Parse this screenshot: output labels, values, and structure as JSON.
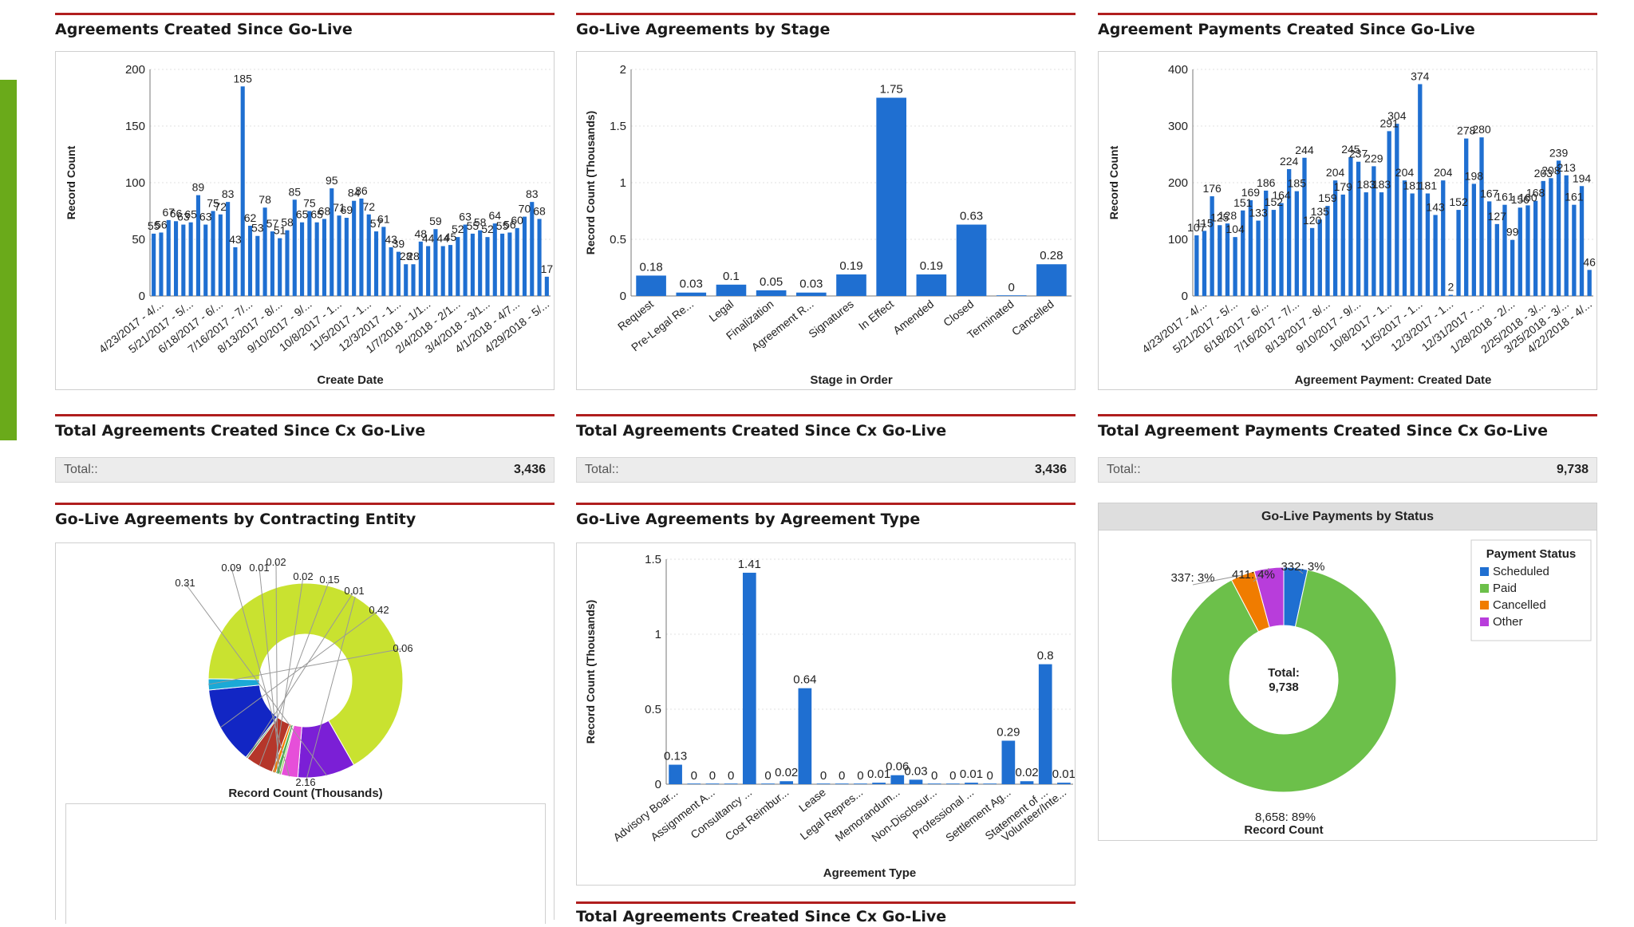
{
  "colors": {
    "bar": "#1f6fd1",
    "accent": "#b01e1e",
    "grid": "#d9d9d9",
    "green_side": "#6aaa1a"
  },
  "panels": {
    "agreements_created": {
      "title": "Agreements Created Since Go-Live",
      "chart_data": {
        "type": "bar",
        "ylabel": "Record Count",
        "xlabel": "Create Date",
        "ylim": [
          0,
          200
        ],
        "yticks": [
          0,
          50,
          100,
          150,
          200
        ],
        "values": [
          55,
          56,
          67,
          66,
          63,
          65,
          89,
          63,
          75,
          72,
          83,
          43,
          185,
          62,
          53,
          78,
          57,
          51,
          58,
          85,
          65,
          75,
          65,
          68,
          95,
          71,
          69,
          84,
          86,
          72,
          57,
          61,
          43,
          39,
          28,
          28,
          48,
          44,
          59,
          44,
          45,
          52,
          63,
          55,
          58,
          52,
          64,
          55,
          56,
          60,
          70,
          83,
          68,
          17
        ],
        "data_labels": [
          [
            0,
            "55"
          ],
          [
            1,
            "56"
          ],
          [
            2,
            "67"
          ],
          [
            3,
            "66"
          ],
          [
            4,
            "63"
          ],
          [
            5,
            "65"
          ],
          [
            6,
            "89"
          ],
          [
            7,
            "63"
          ],
          [
            8,
            "75"
          ],
          [
            9,
            "72"
          ],
          [
            10,
            "83"
          ],
          [
            11,
            "43"
          ],
          [
            12,
            "185"
          ],
          [
            13,
            "62"
          ],
          [
            14,
            "53"
          ],
          [
            15,
            "78"
          ],
          [
            16,
            "57"
          ],
          [
            17,
            "51"
          ],
          [
            18,
            "58"
          ],
          [
            19,
            "85"
          ],
          [
            20,
            "65"
          ],
          [
            21,
            "75"
          ],
          [
            22,
            "65"
          ],
          [
            23,
            "68"
          ],
          [
            24,
            "95"
          ],
          [
            25,
            "71"
          ],
          [
            26,
            "69"
          ],
          [
            27,
            "84"
          ],
          [
            28,
            "86"
          ],
          [
            29,
            "72"
          ],
          [
            30,
            "57"
          ],
          [
            31,
            "61"
          ],
          [
            32,
            "43"
          ],
          [
            33,
            "39"
          ],
          [
            34,
            "28"
          ],
          [
            35,
            "28"
          ],
          [
            36,
            "48"
          ],
          [
            37,
            "44"
          ],
          [
            38,
            "59"
          ],
          [
            39,
            "44"
          ],
          [
            40,
            "45"
          ],
          [
            41,
            "52"
          ],
          [
            42,
            "63"
          ],
          [
            43,
            "55"
          ],
          [
            44,
            "58"
          ],
          [
            45,
            "52"
          ],
          [
            46,
            "64"
          ],
          [
            47,
            "55"
          ],
          [
            48,
            "56"
          ],
          [
            49,
            "60"
          ],
          [
            50,
            "70"
          ],
          [
            51,
            "83"
          ],
          [
            52,
            "68"
          ],
          [
            53,
            "17"
          ]
        ],
        "tick_labels": [
          [
            1,
            "4/23/2017 - 4/..."
          ],
          [
            5,
            "5/21/2017 - 5/..."
          ],
          [
            9,
            "6/18/2017 - 6/..."
          ],
          [
            13,
            "7/16/2017 - 7/..."
          ],
          [
            17,
            "8/13/2017 - 8/..."
          ],
          [
            21,
            "9/10/2017 - 9/..."
          ],
          [
            25,
            "10/8/2017 - 1..."
          ],
          [
            29,
            "11/5/2017 - 1..."
          ],
          [
            33,
            "12/3/2017 - 1..."
          ],
          [
            37,
            "1/7/2018 - 1/1..."
          ],
          [
            41,
            "2/4/2018 - 2/1..."
          ],
          [
            45,
            "3/4/2018 - 3/1..."
          ],
          [
            49,
            "4/1/2018 - 4/7..."
          ],
          [
            53,
            "4/29/2018 - 5/..."
          ]
        ]
      }
    },
    "by_stage": {
      "title": "Go-Live Agreements by Stage",
      "chart_data": {
        "type": "bar",
        "ylabel": "Record Count (Thousands)",
        "xlabel": "Stage in Order",
        "ylim": [
          0,
          2
        ],
        "yticks": [
          0,
          0.5,
          1,
          1.5,
          2
        ],
        "ytick_labels": [
          "0",
          "0.5",
          "1",
          "1.5",
          "2"
        ],
        "categories": [
          "Request",
          "Pre-Legal Re...",
          "Legal",
          "Finalization",
          "Agreement R...",
          "Signatures",
          "In Effect",
          "Amended",
          "Closed",
          "Terminated",
          "Cancelled"
        ],
        "values": [
          0.18,
          0.03,
          0.1,
          0.05,
          0.03,
          0.19,
          1.75,
          0.19,
          0.63,
          0,
          0.28
        ],
        "value_labels": [
          "0.18",
          "0.03",
          "0.1",
          "0.05",
          "0.03",
          "0.19",
          "1.75",
          "0.19",
          "0.63",
          "0",
          "0.28"
        ]
      }
    },
    "payments_created": {
      "title": "Agreement Payments Created Since Go-Live",
      "chart_data": {
        "type": "bar",
        "ylabel": "Record Count",
        "xlabel": "Agreement Payment: Created Date",
        "ylim": [
          0,
          400
        ],
        "yticks": [
          0,
          100,
          200,
          300,
          400
        ],
        "values": [
          107,
          115,
          176,
          125,
          128,
          104,
          151,
          169,
          133,
          186,
          152,
          164,
          224,
          185,
          244,
          120,
          135,
          159,
          204,
          179,
          245,
          237,
          183,
          229,
          183,
          291,
          304,
          204,
          181,
          374,
          181,
          143,
          204,
          2,
          152,
          278,
          198,
          280,
          167,
          127,
          161,
          99,
          156,
          160,
          168,
          203,
          208,
          239,
          213,
          161,
          194,
          46
        ],
        "data_labels": [
          [
            0,
            "107"
          ],
          [
            1,
            "115"
          ],
          [
            2,
            "176"
          ],
          [
            3,
            "125"
          ],
          [
            4,
            "128"
          ],
          [
            5,
            "104"
          ],
          [
            6,
            "151"
          ],
          [
            7,
            "169"
          ],
          [
            8,
            "133"
          ],
          [
            9,
            "186"
          ],
          [
            10,
            "152"
          ],
          [
            11,
            "164"
          ],
          [
            12,
            "224"
          ],
          [
            13,
            "185"
          ],
          [
            14,
            "244"
          ],
          [
            15,
            "120"
          ],
          [
            16,
            "135"
          ],
          [
            17,
            "159"
          ],
          [
            18,
            "204"
          ],
          [
            19,
            "179"
          ],
          [
            20,
            "245"
          ],
          [
            21,
            "237"
          ],
          [
            22,
            "183"
          ],
          [
            23,
            "229"
          ],
          [
            24,
            "183"
          ],
          [
            25,
            "291"
          ],
          [
            26,
            "304"
          ],
          [
            27,
            "204"
          ],
          [
            28,
            "181"
          ],
          [
            29,
            "374"
          ],
          [
            30,
            "181"
          ],
          [
            31,
            "143"
          ],
          [
            32,
            "204"
          ],
          [
            33,
            "2"
          ],
          [
            34,
            "152"
          ],
          [
            35,
            "278"
          ],
          [
            36,
            "198"
          ],
          [
            37,
            "280"
          ],
          [
            38,
            "167"
          ],
          [
            39,
            "127"
          ],
          [
            40,
            "161"
          ],
          [
            41,
            "99"
          ],
          [
            42,
            "156"
          ],
          [
            43,
            "160"
          ],
          [
            44,
            "168"
          ],
          [
            45,
            "203"
          ],
          [
            46,
            "208"
          ],
          [
            47,
            "239"
          ],
          [
            48,
            "213"
          ],
          [
            49,
            "161"
          ],
          [
            50,
            "194"
          ],
          [
            51,
            "46"
          ]
        ],
        "tick_labels": [
          [
            1,
            "4/23/2017 - 4/..."
          ],
          [
            5,
            "5/21/2017 - 5/..."
          ],
          [
            9,
            "6/18/2017 - 6/..."
          ],
          [
            13,
            "7/16/2017 - 7/..."
          ],
          [
            17,
            "8/13/2017 - 8/..."
          ],
          [
            21,
            "9/10/2017 - 9/..."
          ],
          [
            25,
            "10/8/2017 - 1..."
          ],
          [
            29,
            "11/5/2017 - 1..."
          ],
          [
            33,
            "12/3/2017 - 1..."
          ],
          [
            37,
            "12/31/2017 - ..."
          ],
          [
            41,
            "1/28/2018 - 2/..."
          ],
          [
            45,
            "2/25/2018 - 3/..."
          ],
          [
            48,
            "3/25/2018 - 3/..."
          ],
          [
            51,
            "4/22/2018 - 4/..."
          ]
        ]
      }
    },
    "total_agreements_1": {
      "title": "Total Agreements Created Since Cx Go-Live",
      "label": "Total::",
      "value": "3,436"
    },
    "total_agreements_2": {
      "title": "Total Agreements Created Since Cx Go-Live",
      "label": "Total::",
      "value": "3,436"
    },
    "total_payments": {
      "title": "Total Agreement Payments Created Since Cx Go-Live",
      "label": "Total::",
      "value": "9,738"
    },
    "by_entity": {
      "title": "Go-Live Agreements by Contracting Entity",
      "chart_data": {
        "type": "pie",
        "xlabel": "Record Count (Thousands)",
        "values": [
          2.16,
          0.31,
          0.09,
          0.01,
          0.02,
          0.02,
          0.15,
          0.01,
          0.42,
          0.06
        ],
        "labels": [
          "2.16",
          "0.31",
          "0.09",
          "0.01",
          "0.02",
          "0.02",
          "0.15",
          "0.01",
          "0.42",
          "0.06"
        ],
        "colors": [
          "#c9e230",
          "#7b1fd6",
          "#e64fd9",
          "#8bc34a",
          "#4caf50",
          "#f57c00",
          "#b5362a",
          "#2e7d32",
          "#1226c4",
          "#1ba9d6"
        ]
      }
    },
    "by_type": {
      "title": "Go-Live Agreements by Agreement Type",
      "chart_data": {
        "type": "bar",
        "ylabel": "Record Count (Thousands)",
        "xlabel": "Agreement Type",
        "ylim": [
          0,
          1.5
        ],
        "yticks": [
          0,
          0.5,
          1,
          1.5
        ],
        "ytick_labels": [
          "0",
          "0.5",
          "1",
          "1.5"
        ],
        "values": [
          0.13,
          0,
          0,
          0,
          1.41,
          0,
          0.02,
          0.64,
          0,
          0,
          0,
          0.01,
          0.06,
          0.03,
          0,
          0,
          0.01,
          0,
          0.29,
          0.02,
          0.8,
          0.01
        ],
        "value_labels": [
          "0.13",
          "0",
          "0",
          "0",
          "1.41",
          "0",
          "0.02",
          "0.64",
          "0",
          "0",
          "0",
          "0.01",
          "0.06",
          "0.03",
          "0",
          "0",
          "0.01",
          "0",
          "0.29",
          "0.02",
          "0.8",
          "0.01"
        ],
        "tick_labels": [
          [
            0,
            "Advisory Boar..."
          ],
          [
            2,
            "Assignment A..."
          ],
          [
            4,
            "Consultancy ..."
          ],
          [
            6,
            "Cost Reimbur..."
          ],
          [
            8,
            "Lease"
          ],
          [
            10,
            "Legal Repres..."
          ],
          [
            12,
            "Memorandum..."
          ],
          [
            14,
            "Non-Disclosur..."
          ],
          [
            16,
            "Professional ..."
          ],
          [
            18,
            "Settlement Ag..."
          ],
          [
            20,
            "Statement of ..."
          ],
          [
            21,
            "Volunteer/Inte..."
          ]
        ]
      }
    },
    "payments_status": {
      "title": "Go-Live Payments by Status",
      "chart_data": {
        "type": "pie",
        "xlabel": "Record Count",
        "total_label": "Total:",
        "total_value": "9,738",
        "legend_title": "Payment Status",
        "series": [
          {
            "name": "Scheduled",
            "value": 332,
            "label": "332: 3%",
            "color": "#1f6fd1"
          },
          {
            "name": "Paid",
            "value": 8658,
            "label": "8,658: 89%",
            "color": "#6cc04a"
          },
          {
            "name": "Cancelled",
            "value": 337,
            "label": "337: 3%",
            "color": "#f07c00"
          },
          {
            "name": "Other",
            "value": 411,
            "label": "411: 4%",
            "color": "#b83ddb"
          }
        ]
      }
    },
    "bottom_partial": {
      "title": "Total Agreements Created Since Cx Go-Live"
    }
  }
}
